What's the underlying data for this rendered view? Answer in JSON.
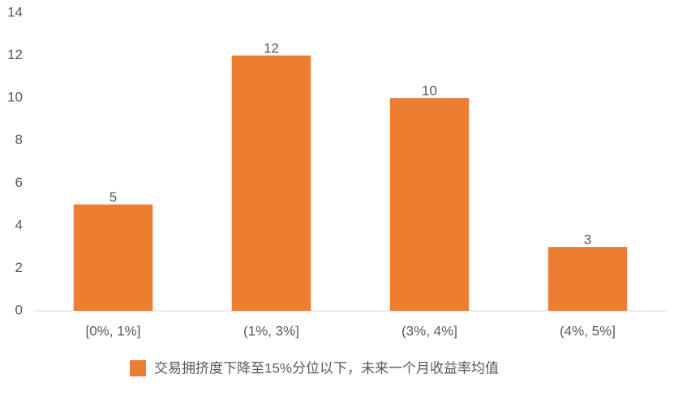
{
  "chart_data": {
    "type": "bar",
    "categories": [
      "[0%, 1%]",
      "(1%, 3%]",
      "(3%, 4%]",
      "(4%, 5%]"
    ],
    "series": [
      {
        "name": "交易拥挤度下降至15%分位以下，未来一个月收益率均值",
        "color": "#ed7d31",
        "values": [
          5,
          12,
          10,
          3
        ]
      }
    ],
    "ylim": [
      0,
      14
    ],
    "yticks": [
      0,
      2,
      4,
      6,
      8,
      10,
      12,
      14
    ],
    "grid": false,
    "legend": "bottom"
  }
}
